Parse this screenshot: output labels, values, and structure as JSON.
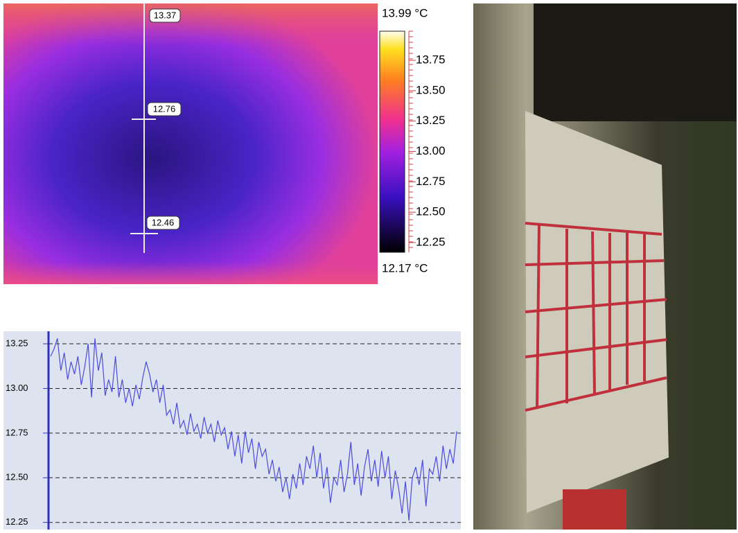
{
  "thermal_image": {
    "max_label": "13.99 °C",
    "min_label": "12.17 °C",
    "profile_labels": [
      "13.37",
      "12.76",
      "12.46"
    ],
    "colorbar": {
      "ylim": [
        12.17,
        13.99
      ],
      "yticks": [
        12.25,
        {
          "value": 12.5,
          "label": "12.50"
        },
        12.75,
        {
          "value": 13,
          "label": "13.00"
        },
        13.25,
        {
          "value": 13.5,
          "label": "13.50"
        },
        13.75
      ]
    }
  },
  "chart_data": {
    "type": "line",
    "color": "#4a4ae0",
    "grid": true,
    "ylim": [
      12.21,
      13.32
    ],
    "yticks": [
      12.25,
      {
        "value": 12.5,
        "label": "12.50"
      },
      12.75,
      {
        "value": 13,
        "label": "13.00"
      },
      13.25
    ],
    "values": [
      13.18,
      13.22,
      13.28,
      13.1,
      13.2,
      13.05,
      13.15,
      13.08,
      13.18,
      13.02,
      13.12,
      13.25,
      12.95,
      13.28,
      13.1,
      13.2,
      12.96,
      13.05,
      12.98,
      13.18,
      12.95,
      13.05,
      12.92,
      13.0,
      12.9,
      13.02,
      12.94,
      13.06,
      13.15,
      13.08,
      12.98,
      13.05,
      12.92,
      13.02,
      12.85,
      12.88,
      12.8,
      12.92,
      12.78,
      12.82,
      12.74,
      12.86,
      12.76,
      12.8,
      12.72,
      12.84,
      12.75,
      12.8,
      12.7,
      12.82,
      12.74,
      12.78,
      12.66,
      12.76,
      12.62,
      12.74,
      12.58,
      12.76,
      12.64,
      12.72,
      12.55,
      12.7,
      12.62,
      12.66,
      12.52,
      12.6,
      12.48,
      12.56,
      12.42,
      12.5,
      12.38,
      12.52,
      12.44,
      12.58,
      12.46,
      12.62,
      12.55,
      12.68,
      12.5,
      12.64,
      12.44,
      12.56,
      12.36,
      12.5,
      12.46,
      12.6,
      12.42,
      12.52,
      12.7,
      12.46,
      12.58,
      12.4,
      12.56,
      12.66,
      12.48,
      12.6,
      12.45,
      12.65,
      12.5,
      12.62,
      12.38,
      12.54,
      12.44,
      12.3,
      12.48,
      12.26,
      12.5,
      12.56,
      12.46,
      12.6,
      12.34,
      12.55,
      12.52,
      12.62,
      12.48,
      12.68,
      12.55,
      12.66,
      12.58,
      12.76
    ]
  }
}
